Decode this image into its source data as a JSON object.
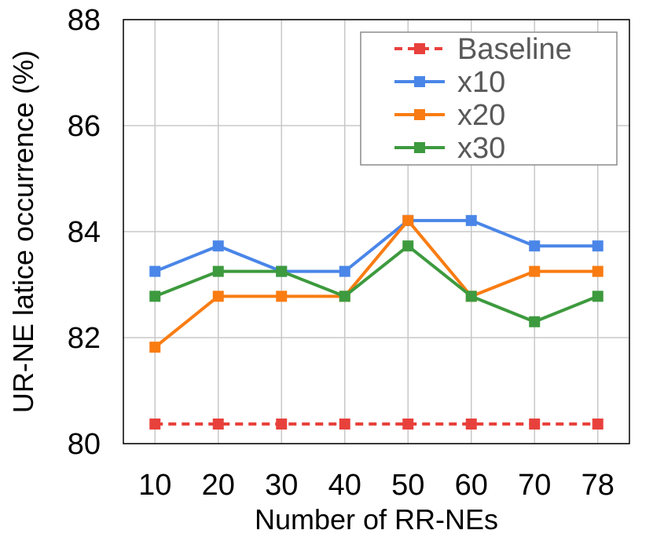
{
  "chart_data": {
    "type": "line",
    "xlabel": "Number of RR-NEs",
    "ylabel": "UR-NE latice occurrence (%)",
    "categories": [
      "10",
      "20",
      "30",
      "40",
      "50",
      "60",
      "70",
      "78"
    ],
    "ylim": [
      80,
      88
    ],
    "yticks": [
      "80",
      "82",
      "84",
      "86",
      "88"
    ],
    "grid": true,
    "legend_position": "top-right",
    "series": [
      {
        "name": "Baseline",
        "color": "#e8413c",
        "dashed": true,
        "marker": "square",
        "values": [
          80.37,
          80.37,
          80.37,
          80.37,
          80.37,
          80.37,
          80.37,
          80.37
        ]
      },
      {
        "name": "x10",
        "color": "#4a86e8",
        "dashed": false,
        "marker": "square",
        "values": [
          83.25,
          83.73,
          83.25,
          83.25,
          84.21,
          84.21,
          83.73,
          83.73
        ]
      },
      {
        "name": "x20",
        "color": "#f97c12",
        "dashed": false,
        "marker": "square",
        "values": [
          81.82,
          82.78,
          82.78,
          82.78,
          84.21,
          82.78,
          83.25,
          83.25
        ]
      },
      {
        "name": "x30",
        "color": "#3d9a3e",
        "dashed": false,
        "marker": "square",
        "values": [
          82.78,
          83.25,
          83.25,
          82.78,
          83.73,
          82.78,
          82.3,
          82.78
        ]
      }
    ]
  }
}
